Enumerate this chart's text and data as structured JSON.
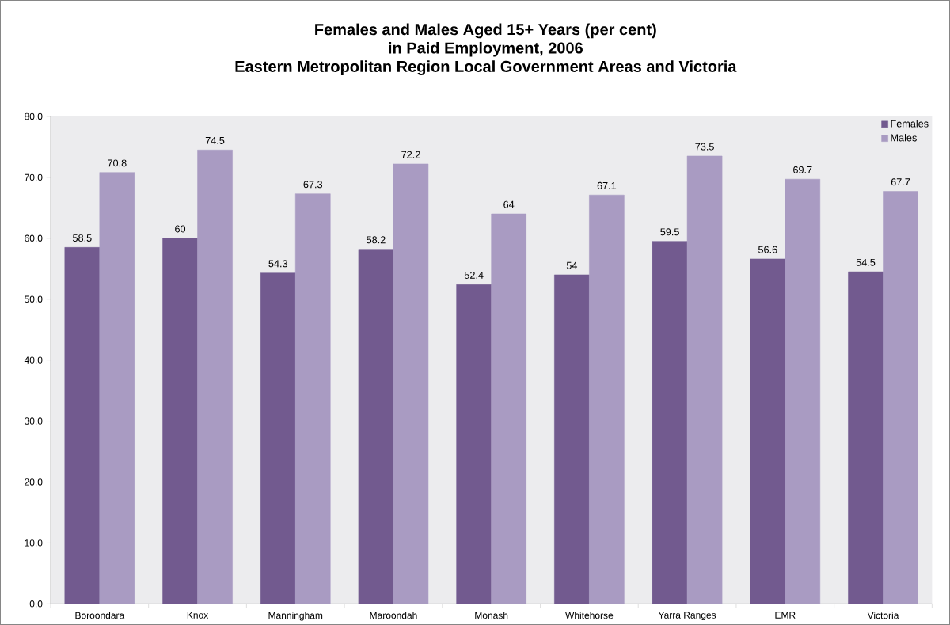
{
  "chart_data": {
    "type": "bar",
    "title": "Females and Males Aged 15+ Years (per cent)\nin Paid Employment, 2006\nEastern Metropolitan Region Local Government Areas and Victoria",
    "categories": [
      "Boroondara",
      "Knox",
      "Manningham",
      "Maroondah",
      "Monash",
      "Whitehorse",
      "Yarra Ranges",
      "EMR",
      "Victoria"
    ],
    "series": [
      {
        "name": "Females",
        "color": "#725a8f",
        "values": [
          58.5,
          60,
          54.3,
          58.2,
          52.4,
          54,
          59.5,
          56.6,
          54.5
        ]
      },
      {
        "name": "Males",
        "color": "#a99bc2",
        "values": [
          70.8,
          74.5,
          67.3,
          72.2,
          64,
          67.1,
          73.5,
          69.7,
          67.7
        ]
      }
    ],
    "ylim": [
      0,
      80
    ],
    "yticks": [
      {
        "value": 0,
        "label": "0.0"
      },
      {
        "value": 10,
        "label": "10.0"
      },
      {
        "value": 20,
        "label": "20.0"
      },
      {
        "value": 30,
        "label": "30.0"
      },
      {
        "value": 40,
        "label": "40.0"
      },
      {
        "value": 50,
        "label": "50.0"
      },
      {
        "value": 60,
        "label": "60.0"
      },
      {
        "value": 70,
        "label": "70.0"
      },
      {
        "value": 80,
        "label": "80.0"
      }
    ],
    "data_labels": true,
    "legend": "top right",
    "grid": false
  }
}
